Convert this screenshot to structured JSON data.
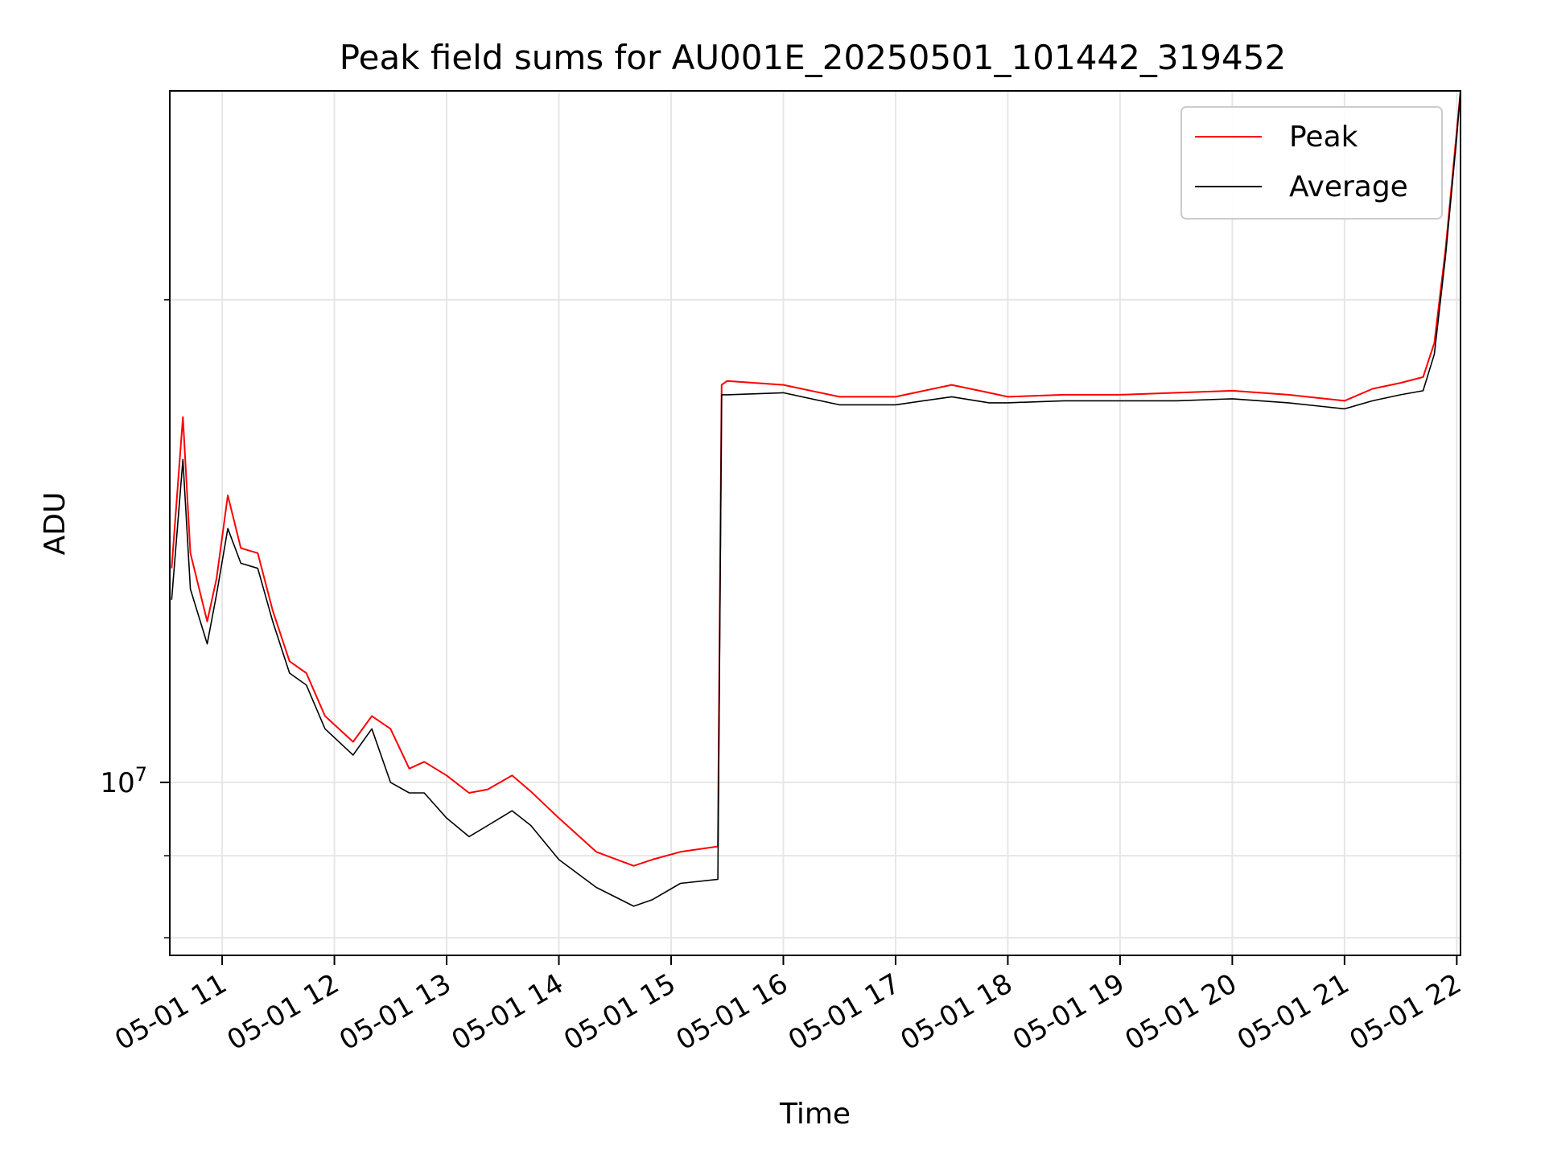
{
  "chart_data": {
    "type": "line",
    "title": "Peak field sums for AU001E_20250501_101442_319452",
    "xlabel": "Time",
    "ylabel": "ADU",
    "y_scale": "log",
    "ylim": [
      7800000,
      27000000
    ],
    "xlim": [
      "2025-05-01 10:32",
      "2025-05-01 22:02"
    ],
    "x_ticks": [
      "05-01 11",
      "05-01 12",
      "05-01 13",
      "05-01 14",
      "05-01 15",
      "05-01 16",
      "05-01 17",
      "05-01 18",
      "05-01 19",
      "05-01 20",
      "05-01 21",
      "05-01 22"
    ],
    "y_ticks": [
      {
        "value": 10000000,
        "label": "10^7"
      }
    ],
    "grid": true,
    "legend_position": "top-right",
    "series": [
      {
        "name": "Peak",
        "color": "#ff0000",
        "x": [
          "2025-05-01 10:33",
          "2025-05-01 10:39",
          "2025-05-01 10:43",
          "2025-05-01 10:52",
          "2025-05-01 10:57",
          "2025-05-01 11:03",
          "2025-05-01 11:10",
          "2025-05-01 11:19",
          "2025-05-01 11:27",
          "2025-05-01 11:36",
          "2025-05-01 11:45",
          "2025-05-01 11:55",
          "2025-05-01 12:10",
          "2025-05-01 12:20",
          "2025-05-01 12:30",
          "2025-05-01 12:40",
          "2025-05-01 12:48",
          "2025-05-01 13:00",
          "2025-05-01 13:12",
          "2025-05-01 13:22",
          "2025-05-01 13:35",
          "2025-05-01 13:45",
          "2025-05-01 14:00",
          "2025-05-01 14:20",
          "2025-05-01 14:40",
          "2025-05-01 14:50",
          "2025-05-01 15:05",
          "2025-05-01 15:25",
          "2025-05-01 15:27",
          "2025-05-01 15:30",
          "2025-05-01 16:00",
          "2025-05-01 16:30",
          "2025-05-01 17:00",
          "2025-05-01 17:30",
          "2025-05-01 17:50",
          "2025-05-01 18:00",
          "2025-05-01 18:30",
          "2025-05-01 19:00",
          "2025-05-01 19:30",
          "2025-05-01 20:00",
          "2025-05-01 20:30",
          "2025-05-01 21:00",
          "2025-05-01 21:15",
          "2025-05-01 21:30",
          "2025-05-01 21:42",
          "2025-05-01 21:48",
          "2025-05-01 21:54",
          "2025-05-01 22:00",
          "2025-05-01 22:02"
        ],
        "y": [
          13600000,
          16900000,
          13900000,
          12600000,
          13400000,
          15100000,
          14000000,
          13900000,
          12800000,
          11900000,
          11700000,
          11000000,
          10600000,
          11000000,
          10800000,
          10200000,
          10300000,
          10100000,
          9850000,
          9900000,
          10100000,
          9870000,
          9500000,
          9050000,
          8870000,
          8950000,
          9050000,
          9120000,
          17700000,
          17800000,
          17700000,
          17400000,
          17400000,
          17700000,
          17500000,
          17400000,
          17450000,
          17450000,
          17500000,
          17550000,
          17450000,
          17300000,
          17600000,
          17750000,
          17900000,
          18800000,
          21500000,
          25500000,
          27000000
        ]
      },
      {
        "name": "Average",
        "color": "#000000",
        "x": [
          "2025-05-01 10:33",
          "2025-05-01 10:39",
          "2025-05-01 10:43",
          "2025-05-01 10:52",
          "2025-05-01 10:57",
          "2025-05-01 11:03",
          "2025-05-01 11:10",
          "2025-05-01 11:19",
          "2025-05-01 11:27",
          "2025-05-01 11:36",
          "2025-05-01 11:45",
          "2025-05-01 11:55",
          "2025-05-01 12:10",
          "2025-05-01 12:20",
          "2025-05-01 12:30",
          "2025-05-01 12:40",
          "2025-05-01 12:48",
          "2025-05-01 13:00",
          "2025-05-01 13:12",
          "2025-05-01 13:22",
          "2025-05-01 13:35",
          "2025-05-01 13:45",
          "2025-05-01 14:00",
          "2025-05-01 14:20",
          "2025-05-01 14:40",
          "2025-05-01 14:50",
          "2025-05-01 15:05",
          "2025-05-01 15:25",
          "2025-05-01 15:27",
          "2025-05-01 15:30",
          "2025-05-01 16:00",
          "2025-05-01 16:30",
          "2025-05-01 17:00",
          "2025-05-01 17:30",
          "2025-05-01 17:50",
          "2025-05-01 18:00",
          "2025-05-01 18:30",
          "2025-05-01 19:00",
          "2025-05-01 19:30",
          "2025-05-01 20:00",
          "2025-05-01 20:30",
          "2025-05-01 21:00",
          "2025-05-01 21:15",
          "2025-05-01 21:30",
          "2025-05-01 21:42",
          "2025-05-01 21:48",
          "2025-05-01 21:54",
          "2025-05-01 22:00",
          "2025-05-01 22:02"
        ],
        "y": [
          13000000,
          15900000,
          13200000,
          12200000,
          13100000,
          14400000,
          13700000,
          13600000,
          12600000,
          11700000,
          11500000,
          10800000,
          10400000,
          10800000,
          10000000,
          9850000,
          9850000,
          9500000,
          9250000,
          9400000,
          9600000,
          9400000,
          8950000,
          8600000,
          8370000,
          8450000,
          8650000,
          8700000,
          17450000,
          17450000,
          17500000,
          17200000,
          17200000,
          17400000,
          17250000,
          17250000,
          17300000,
          17300000,
          17300000,
          17350000,
          17250000,
          17100000,
          17300000,
          17450000,
          17550000,
          18500000,
          21300000,
          25300000,
          27000000
        ]
      }
    ]
  }
}
